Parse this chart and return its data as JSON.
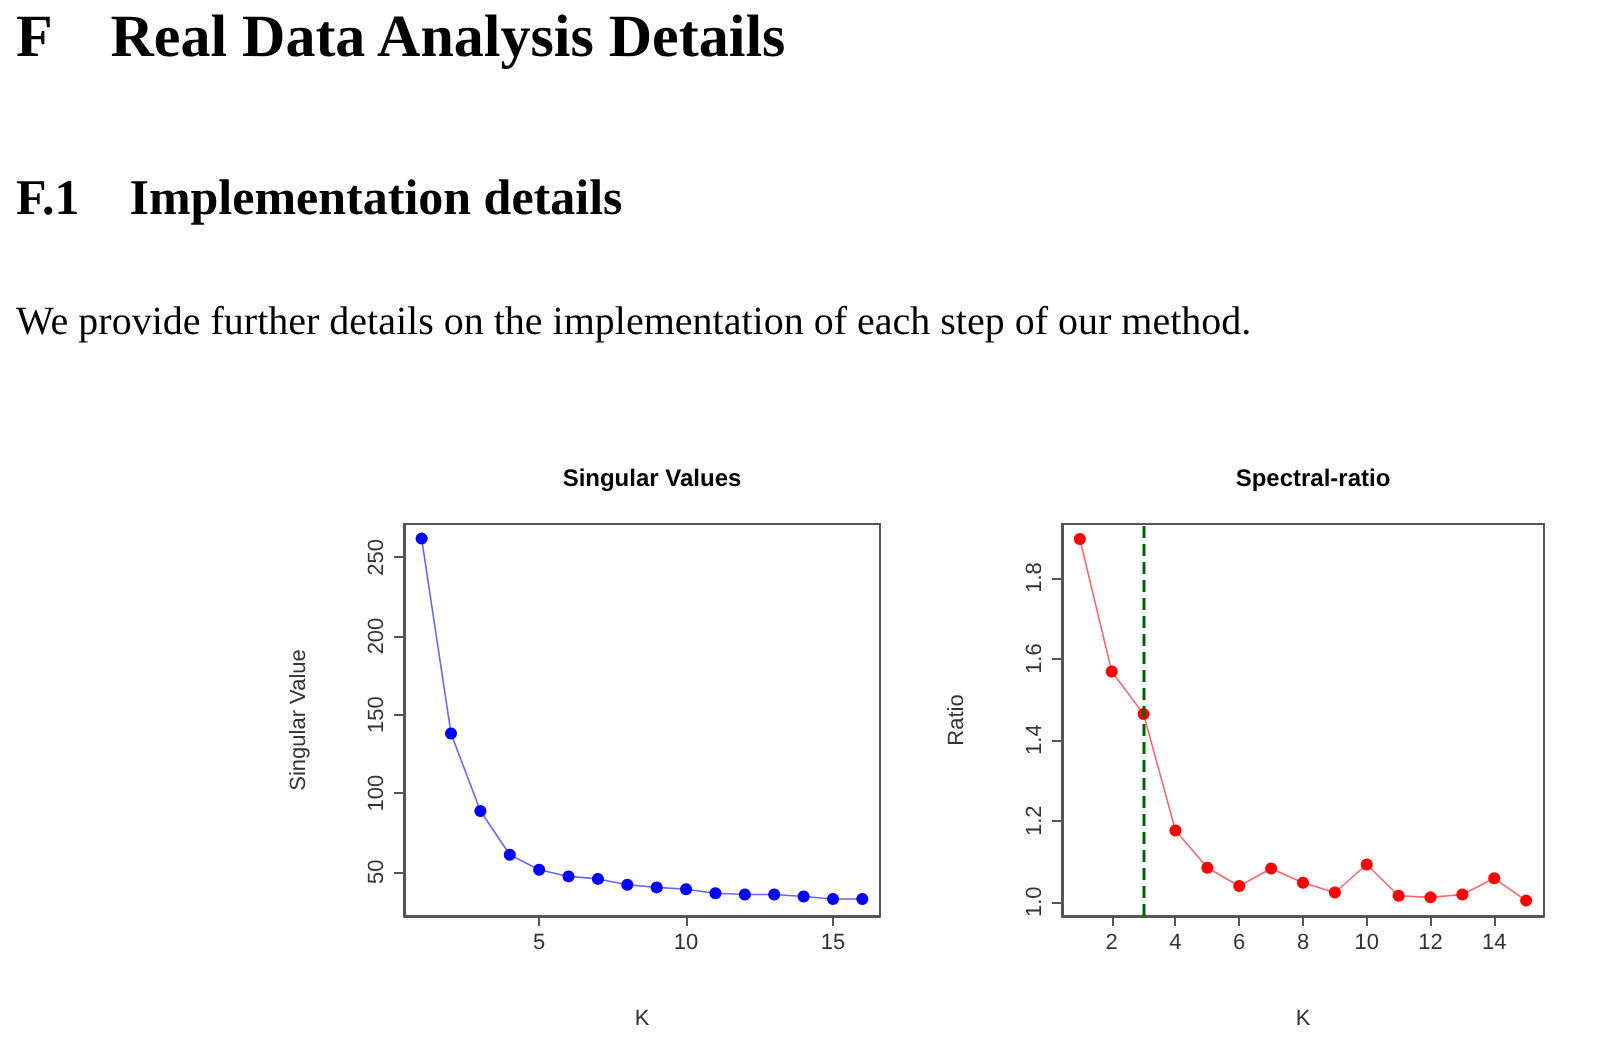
{
  "chart_data": [
    {
      "type": "line",
      "title": "Singular Values",
      "xlabel": "K",
      "ylabel": "Singular Value",
      "annotations": [
        "F    Real Data Analysis Details",
        "F.1    Implementation details",
        "We provide further details on the implementation of each step of our method."
      ],
      "x": [
        1,
        2,
        3,
        4,
        5,
        6,
        7,
        8,
        9,
        10,
        11,
        12,
        13,
        14,
        15,
        16
      ],
      "values": [
        262,
        138,
        88.6,
        60.8,
        51.2,
        47,
        45.4,
        41.7,
        40,
        38.8,
        36.3,
        35.5,
        35.5,
        34.2,
        32.6,
        32.6
      ],
      "color": "#0000ff",
      "marker": "circle",
      "xlim": [
        0.4,
        16.6
      ],
      "ylim": [
        21.8,
        271.3
      ],
      "xticks": [
        5,
        10,
        15
      ],
      "yticks": [
        50,
        100,
        150,
        200,
        250
      ]
    },
    {
      "type": "line",
      "title": "Spectral-ratio",
      "xlabel": "K",
      "ylabel": "Ratio",
      "x": [
        1,
        2,
        3,
        4,
        5,
        6,
        7,
        8,
        9,
        10,
        11,
        12,
        13,
        14,
        15
      ],
      "values": [
        1.895,
        1.568,
        1.463,
        1.176,
        1.084,
        1.039,
        1.082,
        1.047,
        1.023,
        1.092,
        1.015,
        1.011,
        1.018,
        1.058,
        1.003
      ],
      "color": "#ff0000",
      "marker": "circle",
      "xlim": [
        0.44,
        15.56
      ],
      "ylim": [
        0.965,
        1.932
      ],
      "xticks": [
        2,
        4,
        6,
        8,
        10,
        12,
        14
      ],
      "yticks": [
        {
          "value": 1,
          "label": "1.0"
        },
        1.2,
        1.4,
        1.6,
        1.8
      ],
      "ref_lines": [
        {
          "axis": "x",
          "value": 3,
          "color": "#006400",
          "line_style": "dashed"
        }
      ]
    }
  ]
}
